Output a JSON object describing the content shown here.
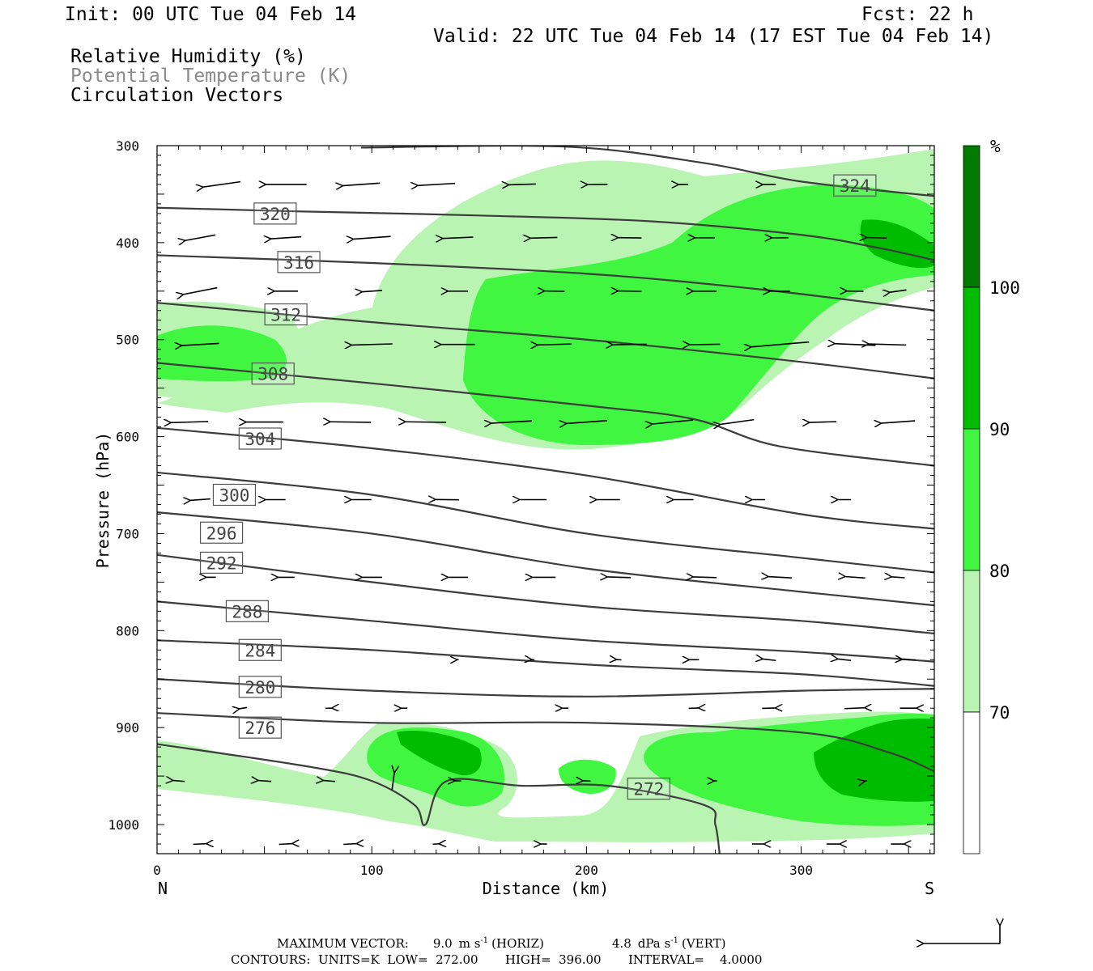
{
  "header": {
    "init": "Init: 00 UTC Tue 04 Feb 14",
    "fcst": "Fcst:   22 h",
    "valid": "Valid: 22 UTC Tue 04 Feb 14 (17 EST Tue 04 Feb 14)",
    "legend_lines": [
      {
        "text": "Relative Humidity (%)",
        "color": "#000000"
      },
      {
        "text": "Potential Temperature (K)",
        "color": "#8a8a8a"
      },
      {
        "text": "Circulation Vectors",
        "color": "#000000"
      }
    ]
  },
  "colorbar": {
    "unit": "%",
    "labels": [
      "70",
      "80",
      "90",
      "100"
    ],
    "bands": [
      {
        "from": 60,
        "to": 70,
        "color": "#ffffff"
      },
      {
        "from": 70,
        "to": 80,
        "color": "#b9f4b3"
      },
      {
        "from": 80,
        "to": 90,
        "color": "#41f641"
      },
      {
        "from": 90,
        "to": 100,
        "color": "#00bc00"
      },
      {
        "from": 100,
        "to": 110,
        "color": "#007a00"
      }
    ]
  },
  "footer": {
    "max_vector_label": "MAXIMUM VECTOR:",
    "horiz_value": "9.0",
    "horiz_unit": "m s",
    "horiz_tag": "(HORIZ)",
    "vert_value": "4.8",
    "vert_unit": "dPa s",
    "vert_tag": "(VERT)",
    "exponent": "-1",
    "contours": "CONTOURS:  UNITS=K  LOW=  272.00       HIGH=  396.00       INTERVAL=    4.0000"
  },
  "chart_data": {
    "type": "cross-section",
    "x": {
      "label": "Distance (km)",
      "range": [
        0,
        362
      ],
      "ticks": [
        0,
        100,
        200,
        300
      ],
      "left_end": "N",
      "right_end": "S"
    },
    "y": {
      "label": "Pressure (hPa)",
      "range": [
        300,
        1030
      ],
      "ticks": [
        300,
        400,
        500,
        600,
        700,
        800,
        900,
        1000
      ],
      "inverted": true
    },
    "theta_contours": [
      {
        "value": 324,
        "label_at": [
          325,
          341
        ],
        "points": [
          [
            95,
            302
          ],
          [
            190,
            301
          ],
          [
            255,
            318
          ],
          [
            300,
            337
          ],
          [
            362,
            352
          ]
        ]
      },
      {
        "value": 320,
        "label_at": [
          55,
          370
        ],
        "points": [
          [
            0,
            364
          ],
          [
            70,
            368
          ],
          [
            150,
            372
          ],
          [
            230,
            378
          ],
          [
            300,
            392
          ],
          [
            335,
            405
          ],
          [
            362,
            418
          ]
        ]
      },
      {
        "value": 316,
        "label_at": [
          66,
          420
        ],
        "points": [
          [
            0,
            413
          ],
          [
            100,
            421
          ],
          [
            200,
            432
          ],
          [
            280,
            448
          ],
          [
            362,
            470
          ]
        ]
      },
      {
        "value": 312,
        "label_at": [
          60,
          474
        ],
        "points": [
          [
            0,
            462
          ],
          [
            100,
            482
          ],
          [
            200,
            500
          ],
          [
            300,
            523
          ],
          [
            362,
            540
          ]
        ]
      },
      {
        "value": 308,
        "label_at": [
          54,
          535
        ],
        "points": [
          [
            0,
            524
          ],
          [
            100,
            545
          ],
          [
            200,
            568
          ],
          [
            250,
            582
          ],
          [
            290,
            610
          ],
          [
            362,
            630
          ]
        ]
      },
      {
        "value": 304,
        "label_at": [
          48,
          602
        ],
        "points": [
          [
            0,
            591
          ],
          [
            100,
            612
          ],
          [
            200,
            640
          ],
          [
            300,
            680
          ],
          [
            362,
            695
          ]
        ]
      },
      {
        "value": 300,
        "label_at": [
          36,
          660
        ],
        "points": [
          [
            0,
            637
          ],
          [
            100,
            660
          ],
          [
            200,
            700
          ],
          [
            300,
            725
          ],
          [
            362,
            740
          ]
        ]
      },
      {
        "value": 296,
        "label_at": [
          30,
          699
        ],
        "points": [
          [
            0,
            678
          ],
          [
            100,
            700
          ],
          [
            200,
            736
          ],
          [
            300,
            760
          ],
          [
            362,
            774
          ]
        ]
      },
      {
        "value": 292,
        "label_at": [
          30,
          730
        ],
        "points": [
          [
            0,
            722
          ],
          [
            100,
            750
          ],
          [
            200,
            775
          ],
          [
            300,
            790
          ],
          [
            362,
            803
          ]
        ]
      },
      {
        "value": 288,
        "label_at": [
          42,
          780
        ],
        "points": [
          [
            0,
            770
          ],
          [
            100,
            790
          ],
          [
            200,
            810
          ],
          [
            300,
            822
          ],
          [
            362,
            832
          ]
        ]
      },
      {
        "value": 284,
        "label_at": [
          48,
          820
        ],
        "points": [
          [
            0,
            810
          ],
          [
            100,
            820
          ],
          [
            200,
            835
          ],
          [
            300,
            845
          ],
          [
            362,
            857
          ]
        ]
      },
      {
        "value": 280,
        "label_at": [
          48,
          858
        ],
        "points": [
          [
            0,
            850
          ],
          [
            100,
            862
          ],
          [
            200,
            868
          ],
          [
            300,
            862
          ],
          [
            362,
            860
          ]
        ]
      },
      {
        "value": 276,
        "label_at": [
          48,
          900
        ],
        "points": [
          [
            0,
            885
          ],
          [
            100,
            895
          ],
          [
            200,
            895
          ],
          [
            300,
            905
          ],
          [
            340,
            925
          ],
          [
            362,
            945
          ]
        ]
      },
      {
        "value": 272,
        "label_at": [
          229,
          963
        ],
        "points": [
          [
            0,
            917
          ],
          [
            70,
            940
          ],
          [
            100,
            955
          ],
          [
            120,
            980
          ],
          [
            125,
            1000
          ],
          [
            135,
            955
          ],
          [
            170,
            960
          ],
          [
            210,
            960
          ],
          [
            255,
            980
          ],
          [
            260,
            1000
          ],
          [
            262,
            1030
          ]
        ]
      }
    ],
    "rh_regions_percent": [
      {
        "level": "70-80",
        "description": "moist layer 300-600 hPa and low levels 900-1030 hPa"
      },
      {
        "level": "80-90",
        "description": "mid-level core 380-600 hPa (150-260 km) and low levels 890-1010 hPa (220-362 km)"
      },
      {
        "level": "90-100",
        "description": "small cores near 380-410 hPa (330-362 km) and 900-980 hPa (110-150 km, 305-362 km)"
      }
    ]
  }
}
